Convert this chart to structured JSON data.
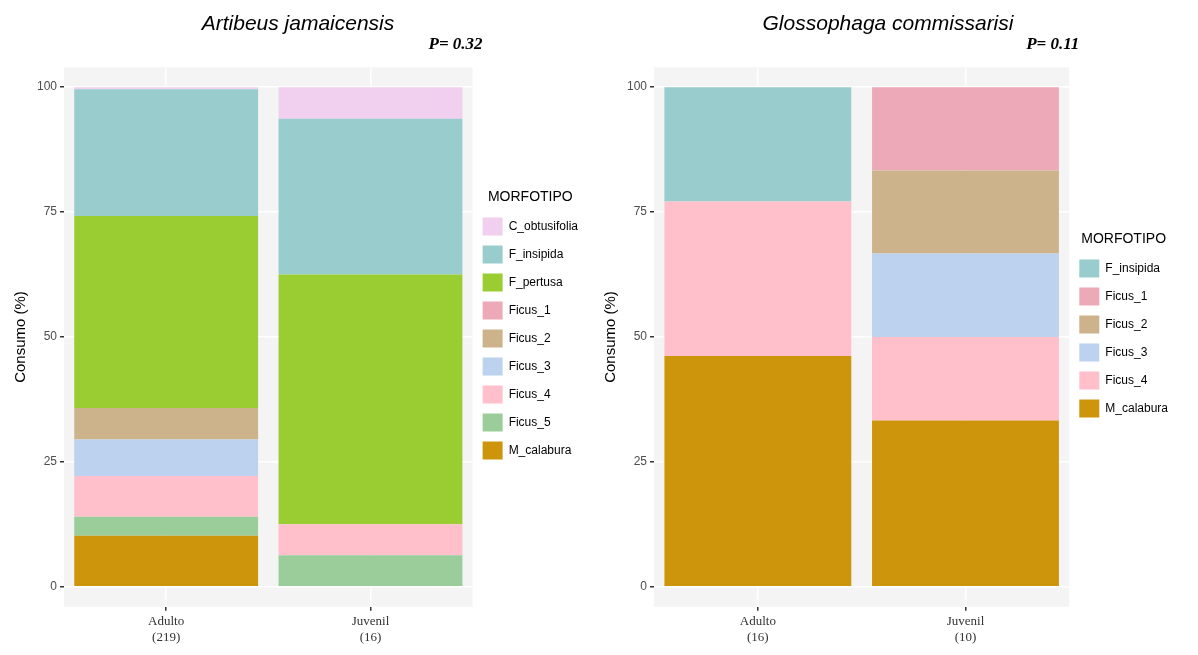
{
  "chart_data": [
    {
      "type": "bar",
      "title": "Artibeus jamaicensis",
      "ylabel": "Consumo (%)",
      "legend_title": "MORFOTIPO",
      "annotations": [
        "P= 0.32"
      ],
      "categories": [
        "Adulto (219)",
        "Juvenil (16)"
      ],
      "stacked": true,
      "ylim": [
        -4,
        104
      ],
      "yticks": [
        0,
        25,
        50,
        75,
        100
      ],
      "grid": true,
      "legend": "right",
      "series": [
        {
          "name": "M_calabura",
          "color": "#cd950c",
          "values": [
            10.2,
            0
          ]
        },
        {
          "name": "Ficus_5",
          "color": "#9bcd9b",
          "values": [
            3.8,
            6.3
          ]
        },
        {
          "name": "Ficus_4",
          "color": "#ffc0cb",
          "values": [
            8.2,
            6.2
          ]
        },
        {
          "name": "Ficus_3",
          "color": "#bcd2ee",
          "values": [
            7.3,
            0
          ]
        },
        {
          "name": "Ficus_2",
          "color": "#cdb38b",
          "values": [
            6.3,
            0
          ]
        },
        {
          "name": "Ficus_1",
          "color": "#eea9b8",
          "values": [
            0,
            0
          ]
        },
        {
          "name": "F_pertusa",
          "color": "#9acd32",
          "values": [
            38.4,
            50
          ]
        },
        {
          "name": "F_insipida",
          "color": "#99cccc",
          "values": [
            25.4,
            31.2
          ]
        },
        {
          "name": "C_obtusifolia",
          "color": "#f0d0ee",
          "values": [
            0.4,
            6.3
          ]
        }
      ]
    },
    {
      "type": "bar",
      "title": "Glossophaga commissarisi",
      "ylabel": "Consumo (%)",
      "legend_title": "MORFOTIPO",
      "annotations": [
        "P= 0.11"
      ],
      "categories": [
        "Adulto (16)",
        "Juvenil (10)"
      ],
      "stacked": true,
      "ylim": [
        -4,
        104
      ],
      "yticks": [
        0,
        25,
        50,
        75,
        100
      ],
      "grid": true,
      "legend": "right",
      "series": [
        {
          "name": "M_calabura",
          "color": "#cd950c",
          "values": [
            46.2,
            33.3
          ]
        },
        {
          "name": "Ficus_4",
          "color": "#ffc0cb",
          "values": [
            30.9,
            16.7
          ]
        },
        {
          "name": "Ficus_3",
          "color": "#bcd2ee",
          "values": [
            0,
            16.7
          ]
        },
        {
          "name": "Ficus_2",
          "color": "#cdb38b",
          "values": [
            0,
            16.6
          ]
        },
        {
          "name": "Ficus_1",
          "color": "#eea9b8",
          "values": [
            0,
            16.7
          ]
        },
        {
          "name": "F_insipida",
          "color": "#99cccc",
          "values": [
            22.9,
            0
          ]
        }
      ]
    }
  ]
}
